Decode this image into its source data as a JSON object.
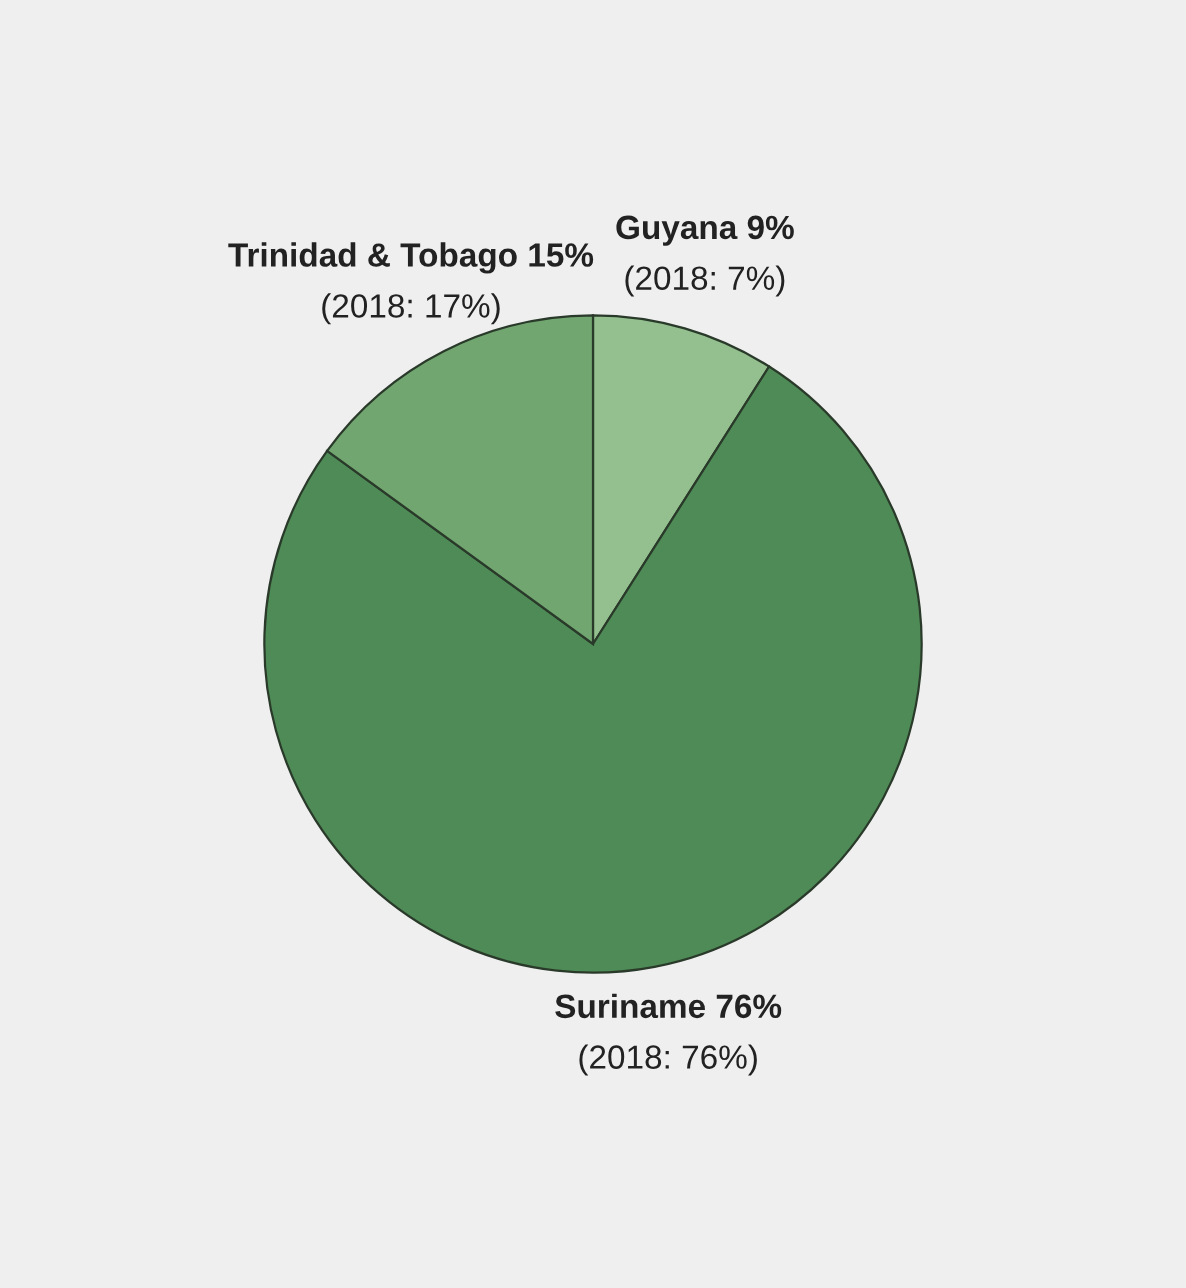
{
  "chart_data": {
    "type": "pie",
    "categories": [
      "Guyana",
      "Suriname",
      "Trinidad & Tobago"
    ],
    "values": [
      9,
      76,
      15
    ],
    "colors": [
      "#93c08e",
      "#4f8b56",
      "#72a670"
    ],
    "value_labels": [
      "9%",
      "76%",
      "15%"
    ],
    "annotations": [
      "(2018: 7%)",
      "(2018: 76%)",
      "(2018: 17%)"
    ]
  }
}
